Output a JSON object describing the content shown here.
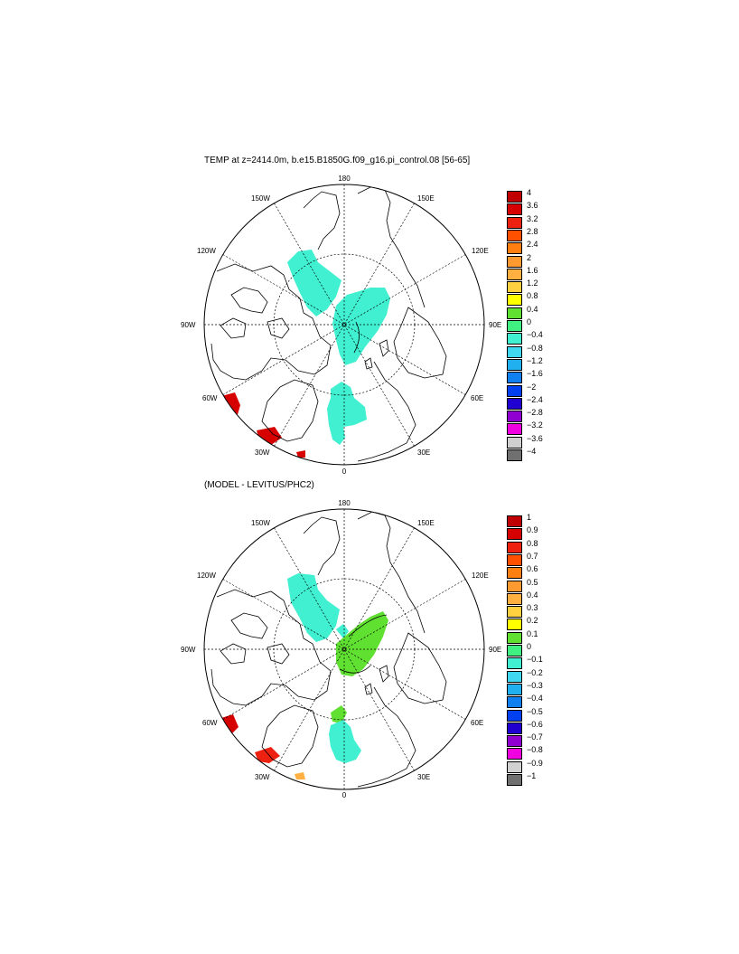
{
  "panels": [
    {
      "id": "top",
      "title": "TEMP at z=2414.0m, b.e15.B1850G.f09_g16.pi_control.08 [56-65]",
      "lon_labels": {
        "n180": "180",
        "n150e": "150E",
        "n120e": "120E",
        "n90e": "90E",
        "n60e": "60E",
        "n30e": "30E",
        "n0": "0",
        "n30w": "30W",
        "n60w": "60W",
        "n90w": "90W",
        "n120w": "120W",
        "n150w": "150W"
      },
      "colorbar": {
        "labels": [
          "4",
          "3.6",
          "3.2",
          "2.8",
          "2.4",
          "2",
          "1.6",
          "1.2",
          "0.8",
          "0.4",
          "0",
          "−0.4",
          "−0.8",
          "−1.2",
          "−1.6",
          "−2",
          "−2.4",
          "−2.8",
          "−3.2",
          "−3.6",
          "−4"
        ],
        "colors": [
          "#c00000",
          "#d60000",
          "#ee2010",
          "#ff5000",
          "#ff7f10",
          "#ff9a30",
          "#ffb040",
          "#ffd040",
          "#ffff00",
          "#60e030",
          "#40f080",
          "#40f0d0",
          "#40d8f0",
          "#20b0f0",
          "#1080f0",
          "#0040f0",
          "#2000d0",
          "#9000d0",
          "#f000e0",
          "#d0d0d0",
          "#707070"
        ]
      }
    },
    {
      "id": "bottom",
      "title": "(MODEL - LEVITUS/PHC2)",
      "lon_labels": {
        "n180": "180",
        "n150e": "150E",
        "n120e": "120E",
        "n90e": "90E",
        "n60e": "60E",
        "n30e": "30E",
        "n0": "0",
        "n30w": "30W",
        "n60w": "60W",
        "n90w": "90W",
        "n120w": "120W",
        "n150w": "150W"
      },
      "colorbar": {
        "labels": [
          "1",
          "0.9",
          "0.8",
          "0.7",
          "0.6",
          "0.5",
          "0.4",
          "0.3",
          "0.2",
          "0.1",
          "0",
          "−0.1",
          "−0.2",
          "−0.3",
          "−0.4",
          "−0.5",
          "−0.6",
          "−0.7",
          "−0.8",
          "−0.9",
          "−1"
        ],
        "colors": [
          "#c00000",
          "#d60000",
          "#ee2010",
          "#ff5000",
          "#ff7f10",
          "#ff9a30",
          "#ffb040",
          "#ffd040",
          "#ffff00",
          "#60e030",
          "#40f080",
          "#40f0d0",
          "#40d8f0",
          "#20b0f0",
          "#1080f0",
          "#0040f0",
          "#2000d0",
          "#9000d0",
          "#f000e0",
          "#d0d0d0",
          "#707070"
        ]
      }
    }
  ]
}
